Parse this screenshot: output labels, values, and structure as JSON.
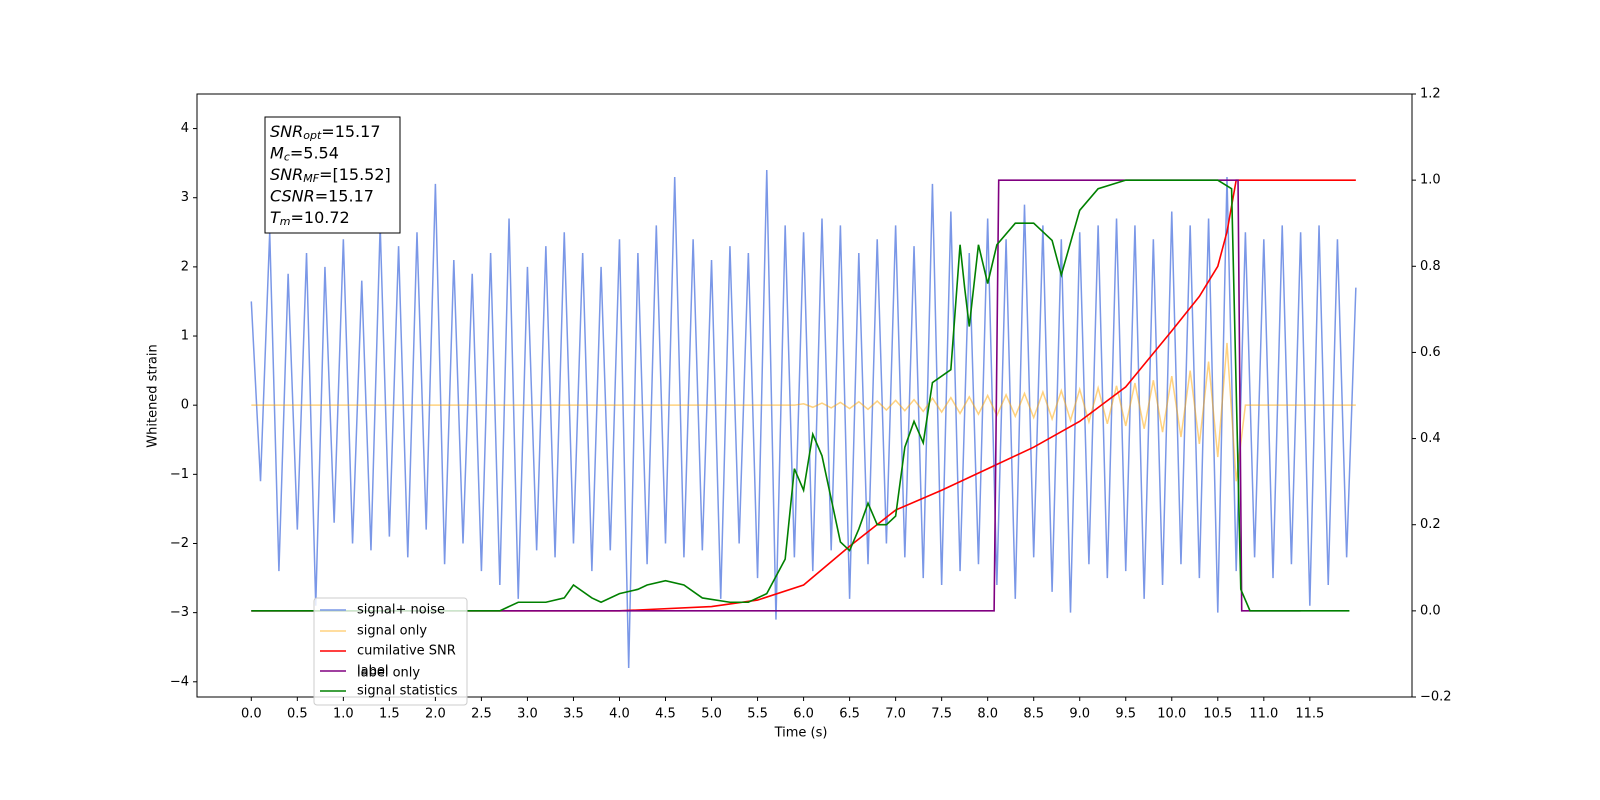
{
  "chart_data": {
    "type": "line",
    "xlabel": "Time (s)",
    "ylabel": "Whitened strain",
    "xlim": [
      -0.59,
      12.61
    ],
    "ylim": [
      -4.22,
      4.5
    ],
    "y2lim": [
      -0.2,
      1.2
    ],
    "xticks": [
      {
        "value": 0,
        "label": "0.0"
      },
      0.5,
      {
        "value": 1,
        "label": "1.0"
      },
      1.5,
      {
        "value": 2,
        "label": "2.0"
      },
      2.5,
      {
        "value": 3,
        "label": "3.0"
      },
      3.5,
      {
        "value": 4,
        "label": "4.0"
      },
      4.5,
      {
        "value": 5,
        "label": "5.0"
      },
      5.5,
      {
        "value": 6,
        "label": "6.0"
      },
      6.5,
      {
        "value": 7,
        "label": "7.0"
      },
      7.5,
      {
        "value": 8,
        "label": "8.0"
      },
      8.5,
      {
        "value": 9,
        "label": "9.0"
      },
      9.5,
      {
        "value": 10,
        "label": "10.0"
      },
      10.5,
      {
        "value": 11,
        "label": "11.0"
      },
      11.5
    ],
    "yticks": [
      {
        "value": -4,
        "label": "−4"
      },
      {
        "value": -3,
        "label": "−3"
      },
      {
        "value": -2,
        "label": "−2"
      },
      {
        "value": -1,
        "label": "−1"
      },
      0,
      1,
      2,
      3,
      4
    ],
    "y2ticks": [
      {
        "value": -0.2,
        "label": "−0.2"
      },
      {
        "value": 0,
        "label": "0.0"
      },
      0.2,
      0.4,
      0.6,
      0.8,
      {
        "value": 1,
        "label": "1.0"
      },
      1.2
    ],
    "grid": false,
    "legend": "lower left",
    "legend_shadow_text": "label only",
    "annotations": [
      {
        "main": "SNR",
        "sub": "opt",
        "rest": "=15.17"
      },
      {
        "main": "M",
        "sub": "c",
        "rest": "=5.54"
      },
      {
        "main": "SNR",
        "sub": "MF",
        "rest": "=[15.52]"
      },
      {
        "main": "CSNR",
        "sub": "",
        "rest": "=15.17"
      },
      {
        "main": "T",
        "sub": "m",
        "rest": "=10.72"
      }
    ],
    "x": [
      0,
      0.1,
      0.2,
      0.3,
      0.4,
      0.5,
      0.6,
      0.7,
      0.8,
      0.9,
      1,
      1.1,
      1.2,
      1.3,
      1.4,
      1.5,
      1.6,
      1.7,
      1.8,
      1.9,
      2,
      2.1,
      2.2,
      2.3,
      2.4,
      2.5,
      2.6,
      2.7,
      2.8,
      2.9,
      3,
      3.1,
      3.2,
      3.3,
      3.4,
      3.5,
      3.6,
      3.7,
      3.8,
      3.9,
      4,
      4.1,
      4.2,
      4.3,
      4.4,
      4.5,
      4.6,
      4.7,
      4.8,
      4.9,
      5,
      5.1,
      5.2,
      5.3,
      5.4,
      5.5,
      5.6,
      5.7,
      5.8,
      5.9,
      6,
      6.1,
      6.2,
      6.3,
      6.4,
      6.5,
      6.6,
      6.7,
      6.8,
      6.9,
      7,
      7.1,
      7.2,
      7.3,
      7.4,
      7.5,
      7.6,
      7.7,
      7.8,
      7.9,
      8,
      8.1,
      8.2,
      8.3,
      8.4,
      8.5,
      8.6,
      8.7,
      8.8,
      8.9,
      9,
      9.1,
      9.2,
      9.3,
      9.4,
      9.5,
      9.6,
      9.7,
      9.8,
      9.9,
      10,
      10.1,
      10.2,
      10.3,
      10.4,
      10.5,
      10.6,
      10.7,
      10.8,
      10.9,
      11,
      11.1,
      11.2,
      11.3,
      11.4,
      11.5,
      11.6,
      11.7,
      11.8,
      11.9,
      12
    ],
    "series": [
      {
        "name": "signal+ noise",
        "color": "#7391e6",
        "axis": "y",
        "values": [
          1.5,
          -1.1,
          2.5,
          -2.4,
          1.9,
          -1.8,
          2.2,
          -2.9,
          2.0,
          -1.7,
          2.4,
          -2.0,
          1.8,
          -2.1,
          2.6,
          -1.9,
          2.3,
          -2.2,
          2.5,
          -1.8,
          3.2,
          -2.3,
          2.1,
          -2.0,
          1.9,
          -2.4,
          2.2,
          -2.6,
          2.7,
          -2.8,
          2.0,
          -2.1,
          2.3,
          -2.2,
          2.5,
          -2.0,
          2.2,
          -2.4,
          2.0,
          -2.1,
          2.4,
          -3.8,
          2.2,
          -2.3,
          2.6,
          -2.0,
          3.3,
          -2.2,
          2.4,
          -2.1,
          2.1,
          -2.8,
          2.3,
          -2.0,
          2.2,
          -2.5,
          3.4,
          -3.1,
          2.6,
          -2.2,
          2.5,
          -2.4,
          2.7,
          -2.1,
          2.6,
          -2.8,
          2.2,
          -2.3,
          2.4,
          -2.0,
          2.6,
          -2.2,
          2.3,
          -2.5,
          3.2,
          -2.6,
          2.8,
          -2.4,
          2.2,
          -2.3,
          2.7,
          -2.6,
          2.4,
          -2.8,
          2.9,
          -2.2,
          2.6,
          -2.7,
          2.4,
          -3.0,
          2.5,
          -2.3,
          2.6,
          -2.5,
          2.7,
          -2.4,
          2.6,
          -2.8,
          2.4,
          -2.6,
          2.8,
          -2.3,
          2.6,
          -2.5,
          2.7,
          -3.0,
          3.3,
          -2.4,
          2.5,
          -2.2,
          2.4,
          -2.5,
          2.6,
          -2.3,
          2.5,
          -2.9,
          2.6,
          -2.6,
          2.4,
          -2.2,
          1.7
        ]
      },
      {
        "name": "signal only",
        "color": "#ffa500",
        "axis": "y",
        "values": [
          0,
          0,
          0,
          0,
          0,
          0,
          0,
          0,
          0,
          0,
          0,
          0,
          0,
          0,
          0,
          0,
          0,
          0,
          0,
          0,
          0,
          0,
          0,
          0,
          0,
          0,
          0,
          0,
          0,
          0,
          0,
          0,
          0,
          0,
          0,
          0,
          0,
          0,
          0,
          0,
          0,
          0,
          0,
          0,
          0,
          0,
          0,
          0,
          0,
          0,
          0,
          0,
          0,
          0,
          0,
          0,
          0,
          0,
          0,
          0,
          0.02,
          -0.03,
          0.03,
          -0.04,
          0.04,
          -0.05,
          0.05,
          -0.06,
          0.06,
          -0.07,
          0.07,
          -0.08,
          0.08,
          -0.09,
          0.1,
          -0.1,
          0.11,
          -0.12,
          0.12,
          -0.13,
          0.14,
          -0.15,
          0.15,
          -0.16,
          0.17,
          -0.18,
          0.19,
          -0.2,
          0.21,
          -0.22,
          0.23,
          -0.24,
          0.25,
          -0.27,
          0.28,
          -0.3,
          0.32,
          -0.34,
          0.36,
          -0.39,
          0.42,
          -0.46,
          0.5,
          -0.56,
          0.63,
          -0.75,
          0.9,
          -1.1,
          0,
          0,
          0,
          0,
          0,
          0,
          0,
          0,
          0,
          0,
          0,
          0,
          0
        ]
      },
      {
        "name": "cumilative SNR",
        "color": "#ff0000",
        "axis": "y2",
        "x": [
          0,
          4,
          5,
          5.5,
          6,
          6.5,
          7,
          7.5,
          8,
          8.5,
          9,
          9.5,
          10,
          10.3,
          10.5,
          10.6,
          10.7,
          11,
          12
        ],
        "values": [
          0,
          0,
          0.01,
          0.025,
          0.06,
          0.15,
          0.234,
          0.28,
          0.33,
          0.38,
          0.44,
          0.52,
          0.65,
          0.73,
          0.8,
          0.88,
          1,
          1,
          1
        ]
      },
      {
        "name": "label",
        "color": "#800080",
        "axis": "y2",
        "x": [
          0,
          8.07,
          8.12,
          10.72,
          10.76,
          11.4
        ],
        "values": [
          0,
          0,
          1,
          1,
          0,
          0
        ]
      },
      {
        "name": "signal statistics",
        "color": "#008000",
        "axis": "y2",
        "x": [
          0,
          2.7,
          2.9,
          3.2,
          3.4,
          3.5,
          3.7,
          3.8,
          4.0,
          4.2,
          4.3,
          4.5,
          4.7,
          4.9,
          5.2,
          5.4,
          5.6,
          5.8,
          5.9,
          6.0,
          6.1,
          6.2,
          6.4,
          6.5,
          6.6,
          6.7,
          6.8,
          6.9,
          7.0,
          7.1,
          7.2,
          7.3,
          7.4,
          7.6,
          7.7,
          7.75,
          7.8,
          7.9,
          8.0,
          8.1,
          8.3,
          8.5,
          8.7,
          8.8,
          9.0,
          9.2,
          9.5,
          10.5,
          10.65,
          10.75,
          10.85,
          11.93
        ],
        "values": [
          0,
          0,
          0.02,
          0.02,
          0.03,
          0.06,
          0.03,
          0.02,
          0.04,
          0.05,
          0.06,
          0.07,
          0.06,
          0.03,
          0.02,
          0.02,
          0.04,
          0.12,
          0.33,
          0.28,
          0.41,
          0.36,
          0.16,
          0.14,
          0.19,
          0.25,
          0.2,
          0.2,
          0.22,
          0.38,
          0.44,
          0.39,
          0.53,
          0.56,
          0.85,
          0.75,
          0.66,
          0.85,
          0.76,
          0.85,
          0.9,
          0.9,
          0.86,
          0.78,
          0.93,
          0.98,
          1,
          1,
          0.98,
          0.05,
          0,
          0
        ]
      }
    ]
  }
}
